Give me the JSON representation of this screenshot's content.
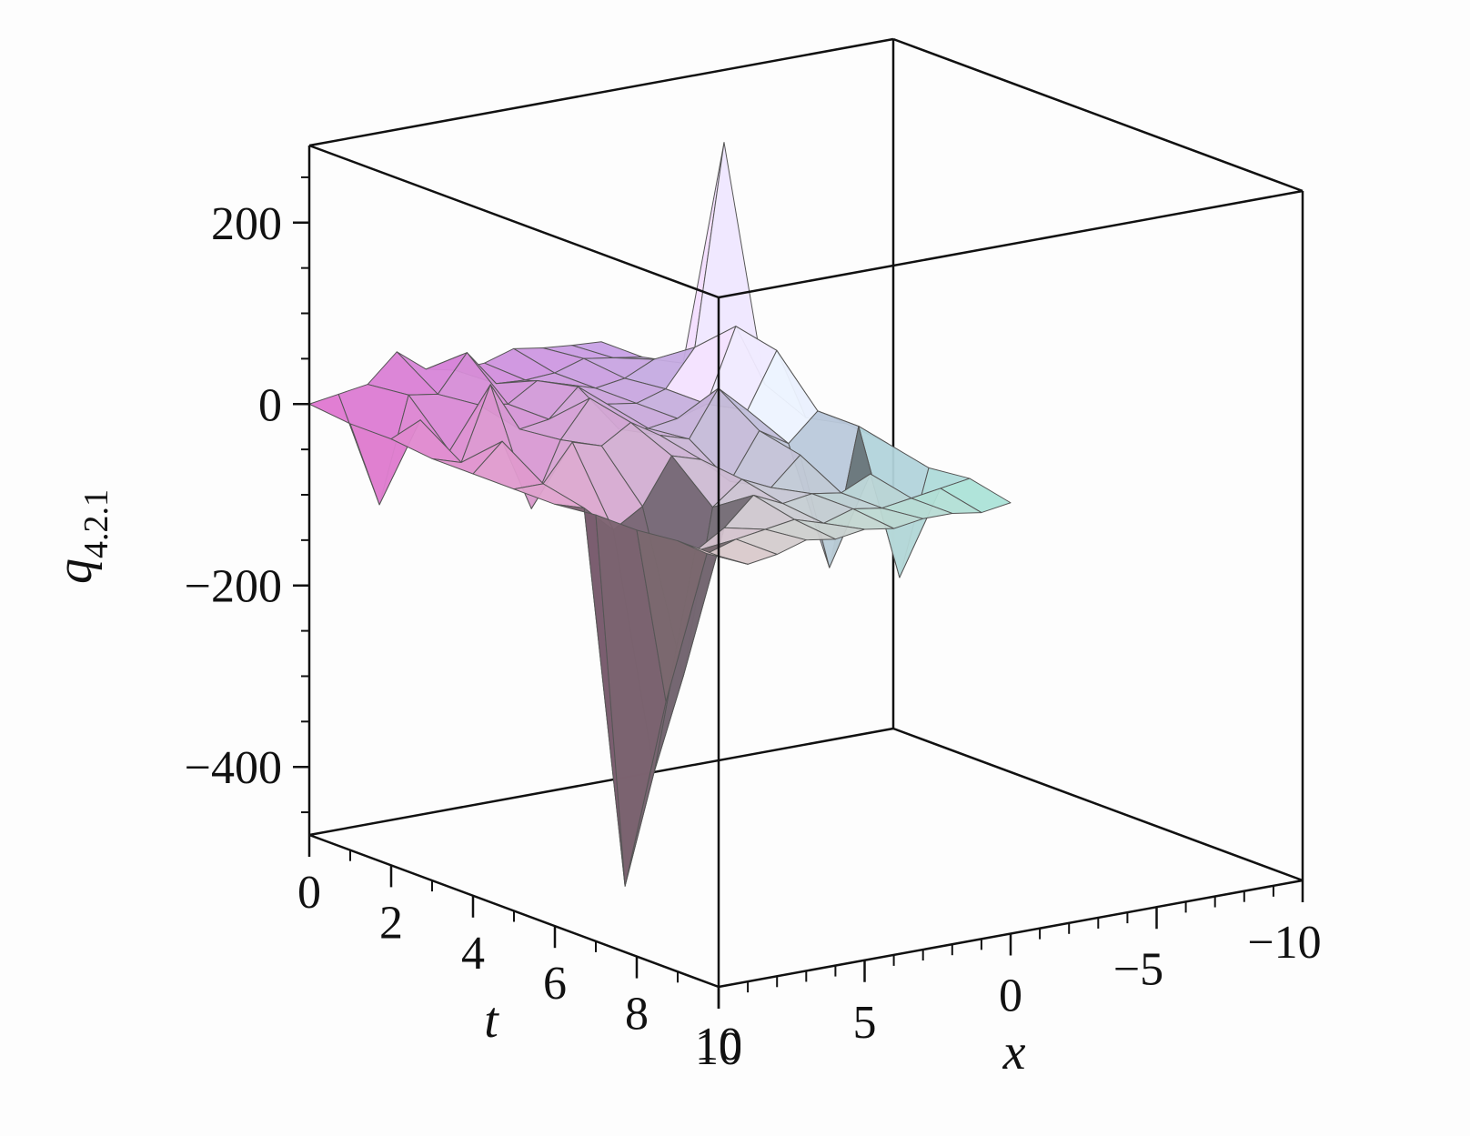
{
  "chart_data": {
    "type": "surface3d",
    "xlabel": "x",
    "tlabel": "t",
    "zlabel": "q",
    "zlabel_sub": "4.2.1",
    "xlim": [
      -10,
      10
    ],
    "tlim": [
      0,
      10
    ],
    "zlim": [
      -475,
      285
    ],
    "xticks": [
      10,
      5,
      0,
      {
        "value": -5,
        "label": "−5"
      },
      {
        "value": -10,
        "label": "−10"
      }
    ],
    "tticks": [
      0,
      2,
      4,
      6,
      8,
      10
    ],
    "zticks": [
      {
        "value": -400,
        "label": "−400"
      },
      {
        "value": -200,
        "label": "−200"
      },
      0,
      200
    ],
    "xminorticks": [
      -10,
      -9,
      -8,
      -7,
      -6,
      -5,
      -4,
      -3,
      -2,
      -1,
      0,
      1,
      2,
      3,
      4,
      5,
      6,
      7,
      8,
      9,
      10
    ],
    "tminorticks": [
      0,
      1,
      2,
      3,
      4,
      5,
      6,
      7,
      8,
      9,
      10
    ],
    "zminorticks": [
      -450,
      -400,
      -350,
      -300,
      -250,
      -200,
      -150,
      -100,
      -50,
      0,
      50,
      100,
      150,
      200,
      250
    ],
    "x": [
      0,
      1,
      2,
      3,
      4,
      5,
      6,
      7,
      8,
      9,
      10
    ],
    "t": [
      0,
      1,
      2,
      3,
      4,
      5,
      6,
      7,
      8,
      9,
      10
    ],
    "z": [
      [
        10,
        12,
        15,
        20,
        10,
        8,
        15,
        40,
        10,
        5,
        0
      ],
      [
        10,
        15,
        20,
        10,
        8,
        10,
        50,
        10,
        15,
        -100,
        -5
      ],
      [
        20,
        30,
        15,
        10,
        20,
        30,
        10,
        15,
        -30,
        10,
        -5
      ],
      [
        280,
        60,
        20,
        10,
        15,
        40,
        10,
        5,
        60,
        -20,
        -10
      ],
      [
        30,
        100,
        20,
        10,
        5,
        10,
        50,
        10,
        -60,
        20,
        -10
      ],
      [
        10,
        90,
        30,
        60,
        10,
        20,
        40,
        20,
        30,
        -10,
        -10
      ],
      [
        20,
        40,
        10,
        30,
        -20,
        10,
        20,
        -30,
        -50,
        -20,
        -10
      ],
      [
        15,
        40,
        -110,
        20,
        -10,
        5,
        -20,
        -200,
        -300,
        -420,
        -5
      ],
      [
        5,
        -110,
        10,
        -5,
        0,
        -5,
        10,
        -20,
        -40,
        -200,
        -5
      ],
      [
        10,
        5,
        0,
        -5,
        0,
        -10,
        0,
        -5,
        -10,
        -20,
        0
      ],
      [
        0,
        -5,
        0,
        0,
        -5,
        0,
        -5,
        0,
        -10,
        -15,
        0
      ]
    ]
  }
}
